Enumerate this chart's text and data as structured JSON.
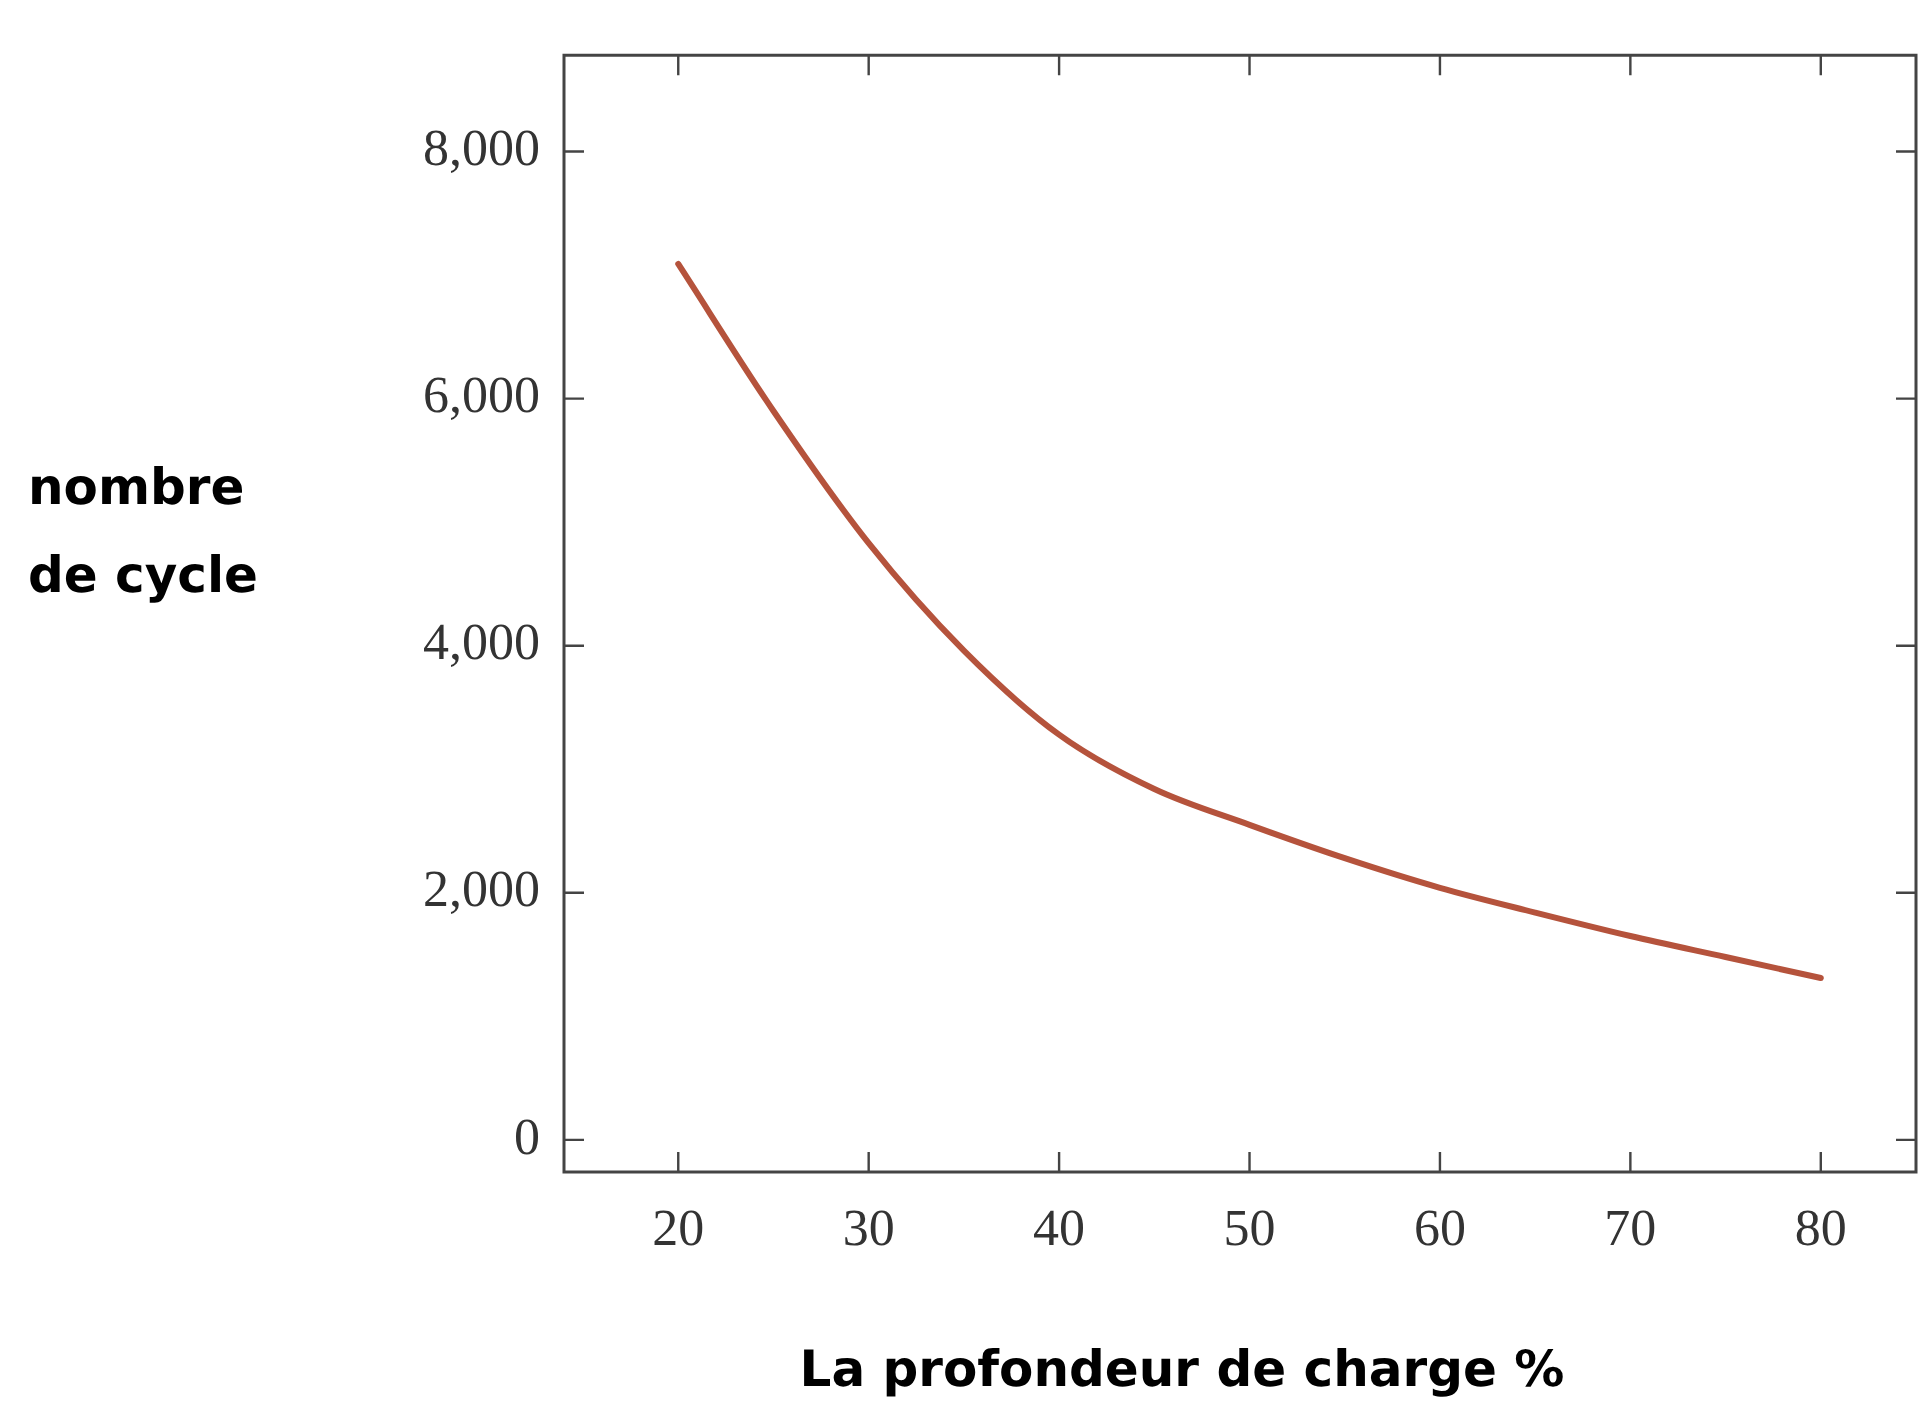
{
  "chart_data": {
    "type": "line",
    "xlabel": "La profondeur de charge %",
    "ylabel": "nombre de  cycle",
    "x": [
      20,
      25,
      30,
      35,
      40,
      45,
      50,
      55,
      60,
      65,
      70,
      75,
      80
    ],
    "series": [
      {
        "color": "#b5533c",
        "values": [
          7090,
          5900,
          4830,
          3960,
          3280,
          2840,
          2550,
          2280,
          2040,
          1840,
          1650,
          1480,
          1310
        ]
      }
    ],
    "xlim": [
      14,
      85
    ],
    "xticks": [
      20,
      30,
      40,
      50,
      60,
      70,
      80
    ],
    "ylim": [
      -260,
      8780
    ],
    "yticks": [
      0,
      {
        "value": 2000,
        "label": "2,000"
      },
      {
        "value": 4000,
        "label": "4,000"
      },
      {
        "value": 6000,
        "label": "6,000"
      },
      {
        "value": 8000,
        "label": "8,000"
      }
    ],
    "grid": false,
    "legend": false,
    "marker": "none",
    "line_style": "solid"
  }
}
